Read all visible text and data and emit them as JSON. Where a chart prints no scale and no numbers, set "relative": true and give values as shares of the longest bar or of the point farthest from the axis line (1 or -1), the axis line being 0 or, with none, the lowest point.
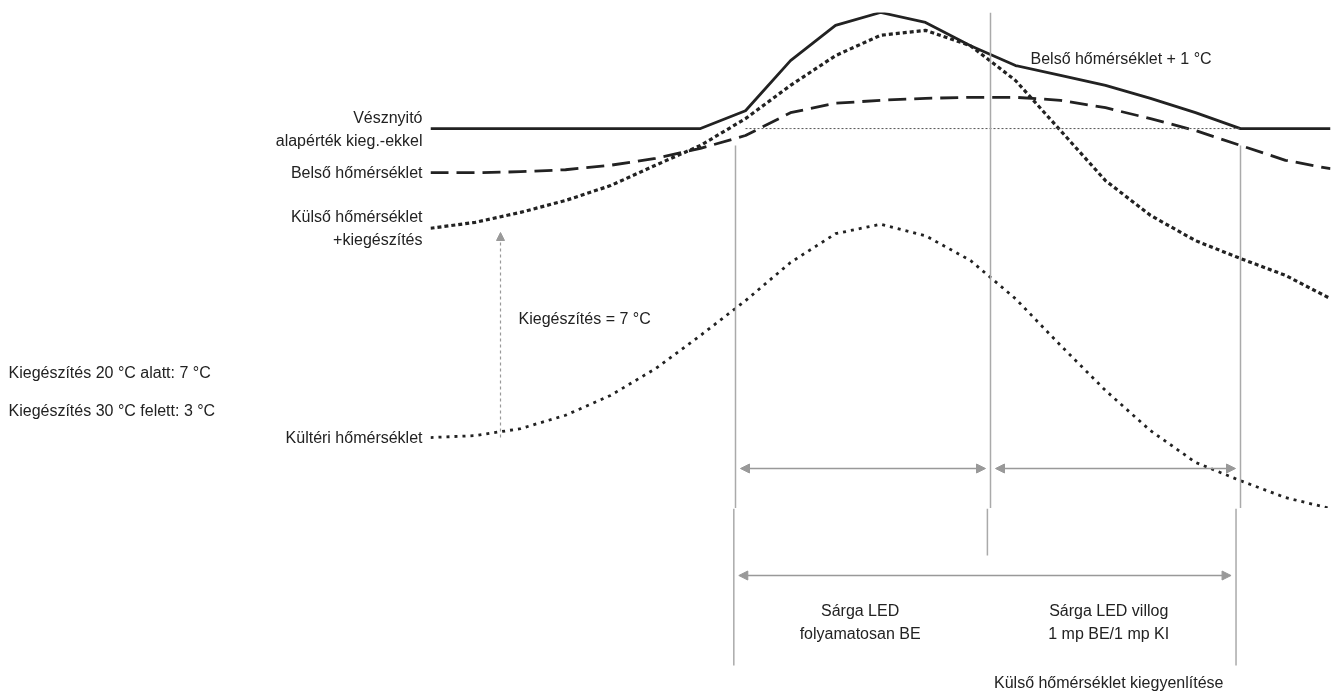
{
  "chart_data": {
    "type": "line",
    "relative": true,
    "categories": [
      null,
      null,
      null,
      null,
      null,
      null,
      null,
      null,
      null,
      null,
      null,
      null,
      null,
      null,
      null,
      null,
      null,
      null,
      null,
      null,
      null
    ],
    "series": [
      {
        "name": "Vésznyitó\nalapérték kieg.-ekkel",
        "color": "#222222",
        "line_style": "solid",
        "values": [
          0.766,
          0.766,
          0.766,
          0.766,
          0.766,
          0.766,
          0.766,
          0.802,
          0.903,
          0.974,
          1.0,
          0.98,
          0.933,
          0.893,
          0.873,
          0.853,
          0.827,
          0.798,
          0.766,
          0.766,
          0.766
        ]
      },
      {
        "name": "Belső hőmérséklet",
        "color": "#222222",
        "line_style": "dashed",
        "values": [
          0.677,
          0.677,
          0.679,
          0.683,
          0.692,
          0.706,
          0.726,
          0.752,
          0.798,
          0.817,
          0.823,
          0.827,
          0.829,
          0.829,
          0.823,
          0.808,
          0.786,
          0.762,
          0.732,
          0.702,
          0.685
        ]
      },
      {
        "name": "Külső hőmérséklet\n+kiegészítés",
        "color": "#222222",
        "line_style": "dotted",
        "values": [
          0.565,
          0.577,
          0.597,
          0.621,
          0.651,
          0.692,
          0.732,
          0.786,
          0.853,
          0.913,
          0.954,
          0.964,
          0.933,
          0.863,
          0.762,
          0.661,
          0.591,
          0.54,
          0.504,
          0.47,
          0.423
        ]
      },
      {
        "name": "Kültéri hőmérséklet",
        "color": "#222222",
        "line_style": "dotted",
        "values": [
          0.143,
          0.147,
          0.161,
          0.188,
          0.228,
          0.282,
          0.349,
          0.419,
          0.496,
          0.554,
          0.573,
          0.55,
          0.5,
          0.423,
          0.329,
          0.238,
          0.157,
          0.093,
          0.056,
          0.022,
          0.0
        ]
      },
      {
        "color": "#555555",
        "line_style": "dotted",
        "values": [
          null,
          null,
          null,
          null,
          null,
          null,
          null,
          0.766,
          0.766,
          0.766,
          0.766,
          0.766,
          0.766,
          0.766,
          0.766,
          0.766,
          0.766,
          0.766,
          0.766,
          null,
          null
        ]
      }
    ],
    "annotations": [
      "Belső hőmérséklet + 1 °C",
      "Kiegészítés = 7 °C",
      "Kiegészítés 20 °C alatt: 7 °C",
      "Kiegészítés 30 °C felett: 3 °C",
      "Sárga LED\nfolyamatosan BE",
      "Sárga LED villog\n1 mp BE/1 mp KI",
      "Külső hőmérséklet kiegyenlítése"
    ]
  }
}
